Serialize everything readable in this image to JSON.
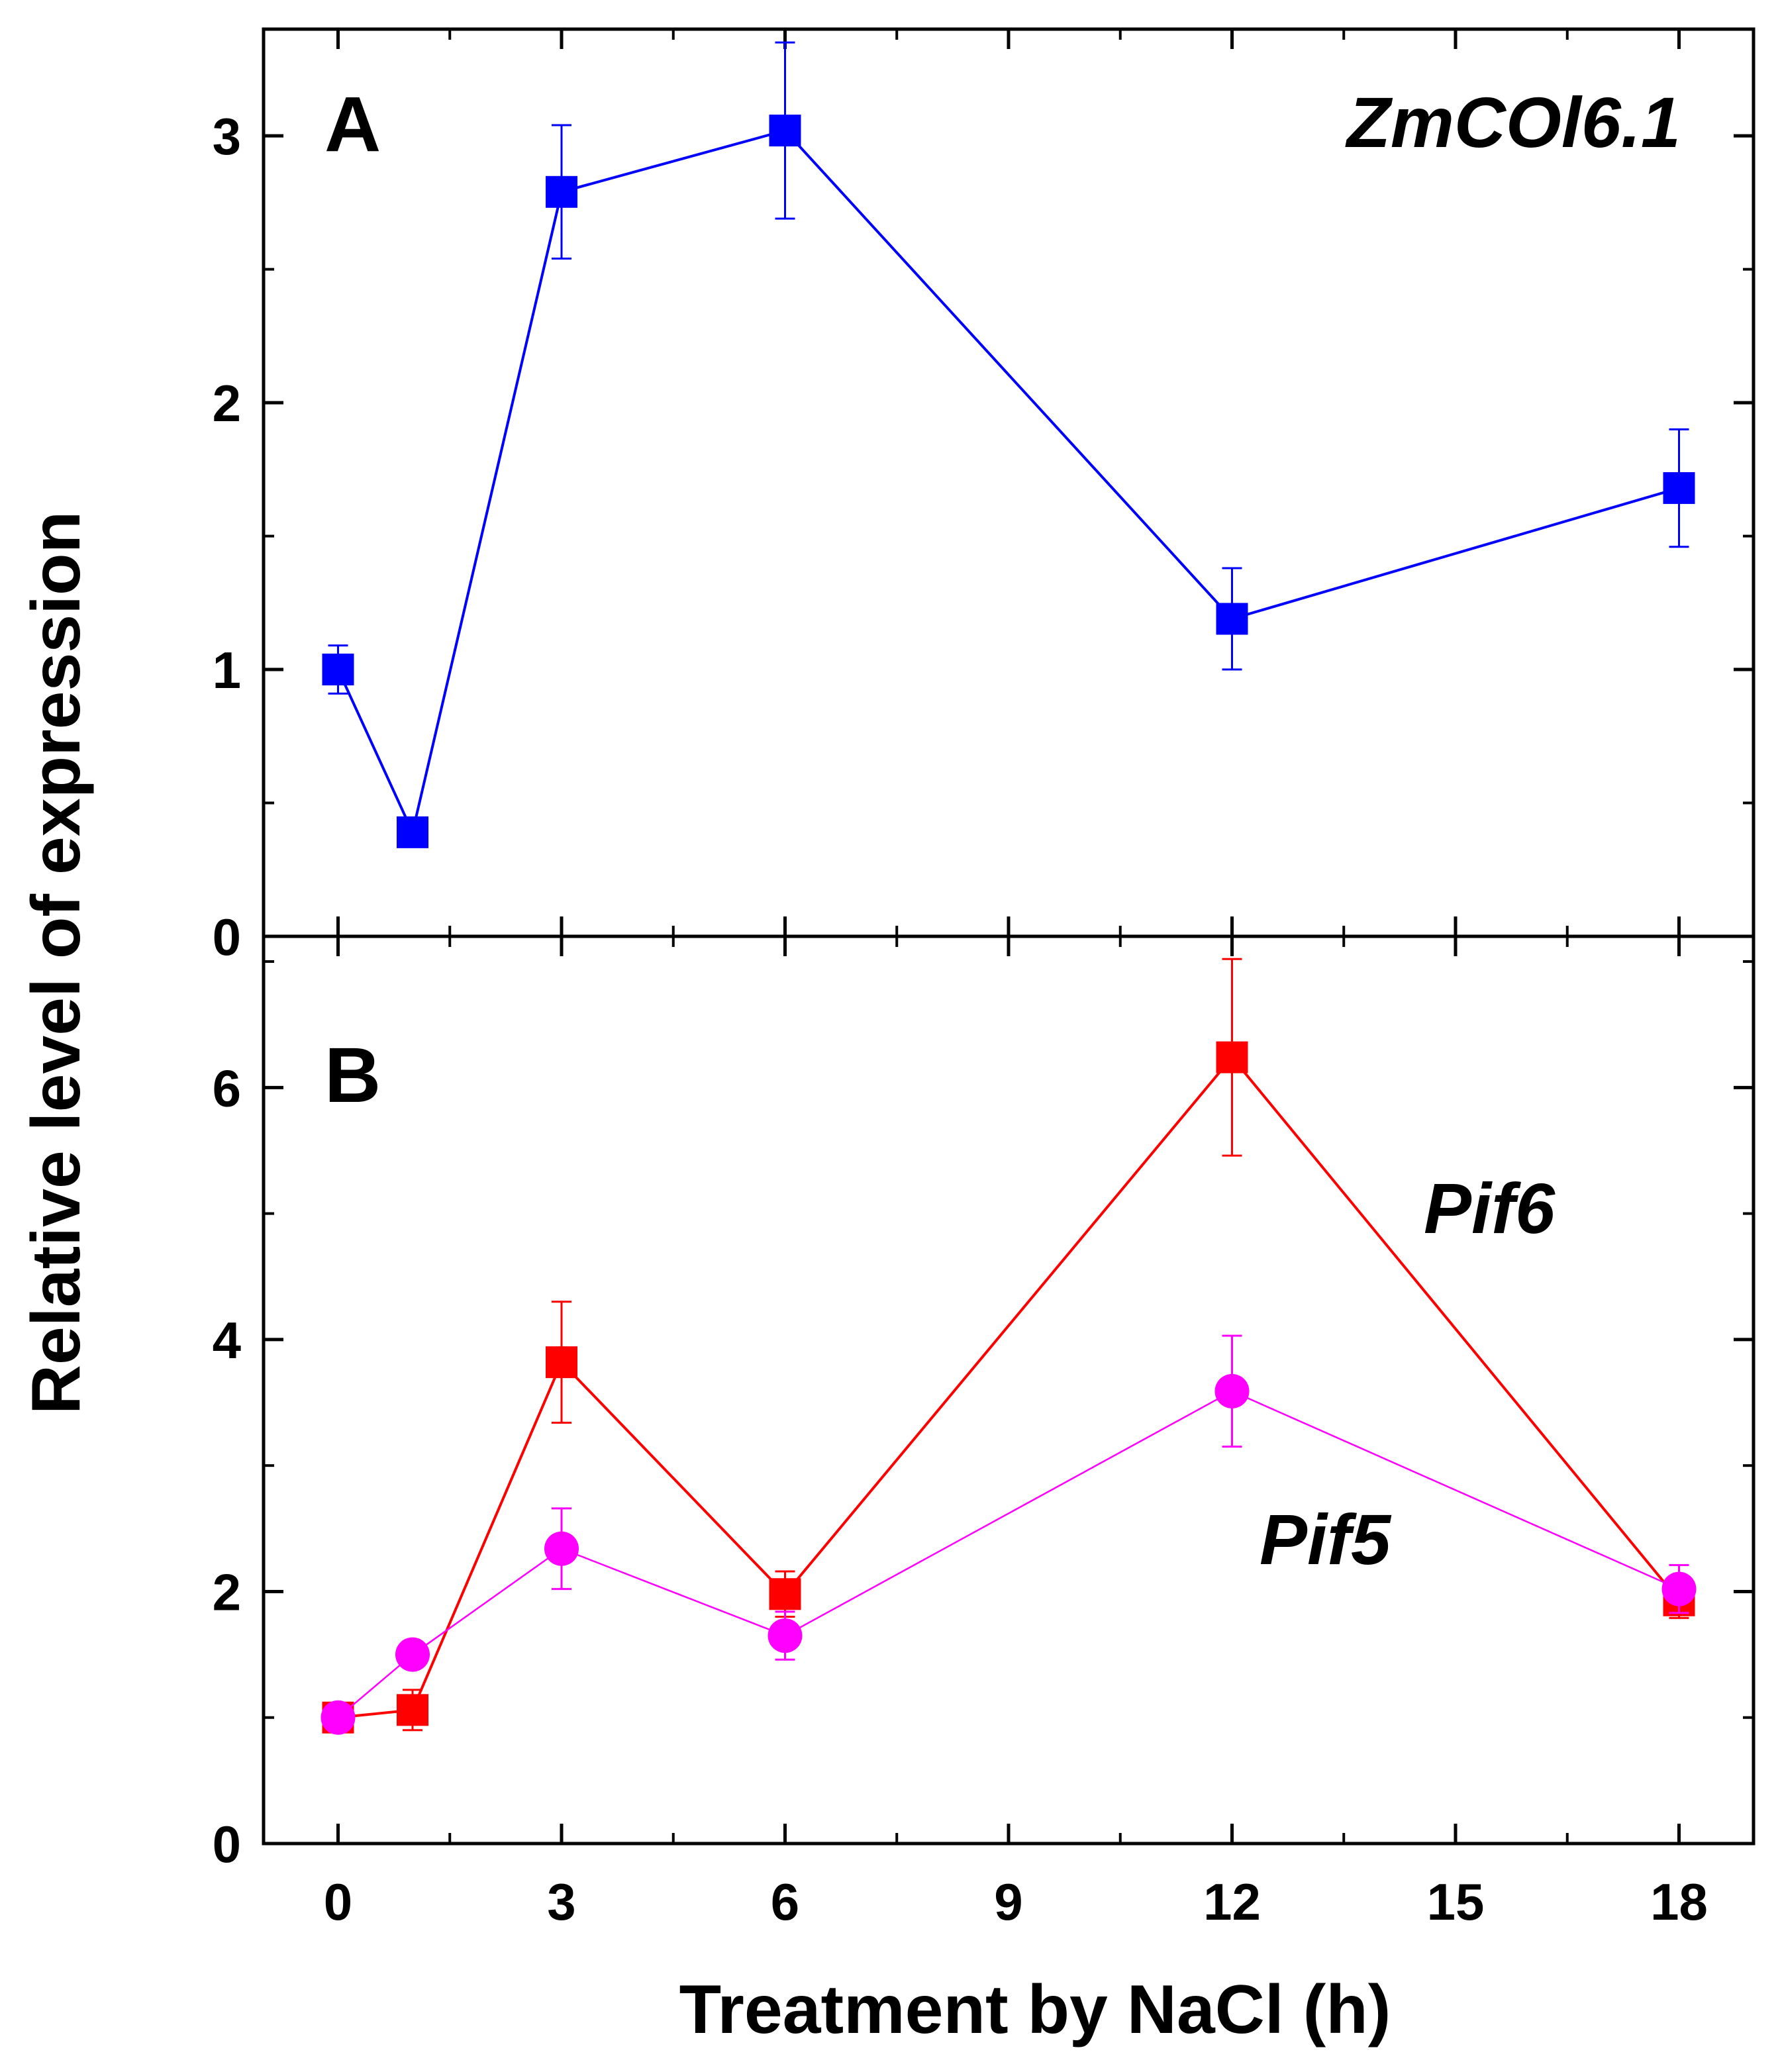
{
  "chart_data": [
    {
      "type": "line",
      "panel": "A",
      "xlim": [
        -1,
        19
      ],
      "ylim": [
        0,
        3.4
      ],
      "xticks": [
        0,
        3,
        6,
        9,
        12,
        15,
        18
      ],
      "yticks": [
        0,
        1,
        2,
        3
      ],
      "ytick_labels": [
        "0",
        "1",
        "2",
        "3"
      ],
      "series": [
        {
          "name": "ZmCOl6.1",
          "label": "ZmCOl6.1",
          "color": "#0000ff",
          "marker": "square",
          "x": [
            0,
            1,
            3,
            6,
            12,
            18
          ],
          "y": [
            1.0,
            0.39,
            2.79,
            3.02,
            1.19,
            1.68
          ],
          "err": [
            0.09,
            0.0,
            0.25,
            0.33,
            0.19,
            0.22
          ]
        }
      ]
    },
    {
      "type": "line",
      "panel": "B",
      "xlim": [
        -1,
        19
      ],
      "ylim": [
        0,
        7.2
      ],
      "xticks": [
        0,
        3,
        6,
        9,
        12,
        15,
        18
      ],
      "yticks": [
        0,
        2,
        4,
        6
      ],
      "ytick_labels": [
        "0",
        "2",
        "4",
        "6"
      ],
      "series": [
        {
          "name": "Pif6",
          "label": "Pif6",
          "color": "#ff0000",
          "marker": "square",
          "x": [
            0,
            1,
            3,
            6,
            12,
            18
          ],
          "y": [
            1.0,
            1.06,
            3.82,
            1.98,
            6.24,
            1.93
          ],
          "err": [
            0.05,
            0.16,
            0.48,
            0.18,
            0.78,
            0.14
          ]
        },
        {
          "name": "Pif5",
          "label": "Pif5",
          "color": "#ff00ff",
          "marker": "circle",
          "x": [
            0,
            1,
            3,
            6,
            12,
            18
          ],
          "y": [
            1.0,
            1.5,
            2.34,
            1.65,
            3.59,
            2.02
          ],
          "err": [
            0.03,
            0.0,
            0.32,
            0.19,
            0.44,
            0.19
          ]
        }
      ]
    }
  ],
  "xtick_labels": [
    "0",
    "3",
    "6",
    "9",
    "12",
    "15",
    "18"
  ],
  "xlabel": "Treatment by NaCl (h)",
  "ylabel": "Relative level of expression"
}
